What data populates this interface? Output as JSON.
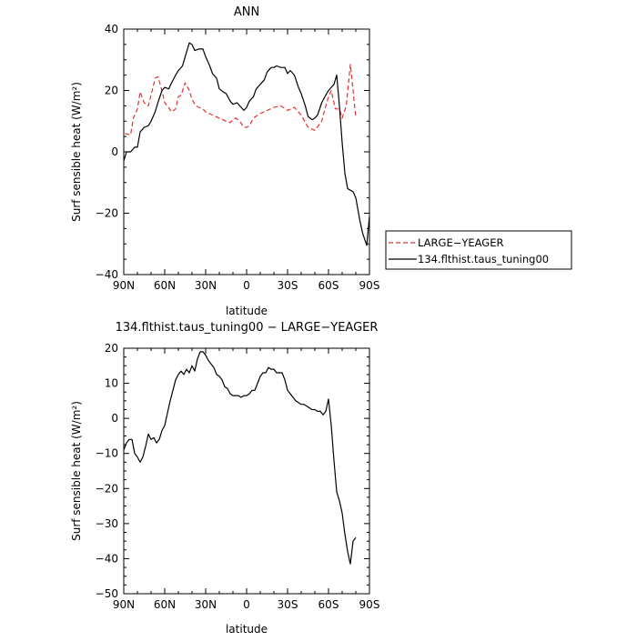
{
  "chart_data": [
    {
      "type": "line",
      "title": "ANN",
      "xlabel": "latitude",
      "ylabel": "Surf sensible heat (W/m²)",
      "xlim": [
        90,
        -90
      ],
      "ylim": [
        -40,
        40
      ],
      "x_ticks": [
        90,
        60,
        30,
        0,
        -30,
        -60,
        -90
      ],
      "x_tick_labels": [
        "90N",
        "60N",
        "30N",
        "0",
        "30S",
        "60S",
        "90S"
      ],
      "y_ticks": [
        -40,
        -20,
        0,
        20,
        40
      ],
      "y_tick_labels": [
        "−40",
        "−20",
        "0",
        "20",
        "40"
      ],
      "legend_position": "right",
      "series": [
        {
          "name": "LARGE−YEAGER",
          "color": "#e8312e",
          "dash": "dashed",
          "x": [
            89,
            85,
            83,
            80,
            78,
            75,
            72,
            70,
            67,
            65,
            62,
            60,
            58,
            55,
            52,
            50,
            48,
            45,
            42,
            40,
            37,
            35,
            32,
            30,
            25,
            20,
            15,
            12,
            10,
            8,
            5,
            2,
            0,
            -2,
            -5,
            -10,
            -15,
            -20,
            -25,
            -30,
            -35,
            -40,
            -45,
            -50,
            -55,
            -58,
            -60,
            -62,
            -65,
            -68,
            -70,
            -73,
            -76,
            -78,
            -80
          ],
          "y": [
            6,
            5.5,
            11,
            14,
            19.5,
            16,
            15,
            18.5,
            24,
            24.5,
            20,
            16,
            15,
            13,
            14,
            18,
            18.5,
            22.5,
            20,
            17,
            15,
            14.5,
            14,
            13,
            12,
            11,
            10,
            9.5,
            10.5,
            11,
            10,
            8,
            8,
            8.5,
            11,
            12.5,
            13.5,
            14.5,
            15,
            13.5,
            14.5,
            12,
            8,
            7,
            10,
            15,
            18,
            20,
            14,
            14,
            11,
            15,
            28.5,
            20,
            11
          ]
        },
        {
          "name": "134.flthist.taus_tuning00",
          "color": "#000000",
          "dash": "solid",
          "x": [
            90,
            88,
            85,
            82,
            80,
            78,
            75,
            72,
            70,
            67,
            65,
            62,
            60,
            57,
            55,
            52,
            50,
            47,
            45,
            42,
            40,
            38,
            35,
            32,
            30,
            27,
            25,
            22,
            20,
            17,
            15,
            12,
            10,
            7,
            5,
            2,
            0,
            -2,
            -5,
            -7,
            -10,
            -13,
            -15,
            -18,
            -20,
            -22,
            -25,
            -28,
            -30,
            -32,
            -35,
            -38,
            -40,
            -43,
            -45,
            -48,
            -50,
            -52,
            -55,
            -58,
            -60,
            -62,
            -64,
            -66,
            -68,
            -70,
            -72,
            -74,
            -76,
            -78,
            -80,
            -83,
            -85,
            -88,
            -90
          ],
          "y": [
            -3,
            0,
            0,
            1.5,
            1.5,
            6.5,
            8,
            8.5,
            10,
            13,
            16,
            20,
            21,
            20.5,
            22.5,
            25,
            26.5,
            28,
            31,
            35.5,
            35,
            33,
            33.5,
            33.5,
            31,
            28,
            25.5,
            24,
            20.5,
            19.5,
            19,
            16.5,
            15.5,
            16,
            15,
            13.5,
            14.5,
            16.5,
            18,
            20.5,
            22,
            23.5,
            26,
            27.5,
            27.5,
            28,
            27.5,
            27.5,
            25.5,
            26.5,
            25,
            21,
            19,
            15,
            11.5,
            10.5,
            11,
            12,
            16,
            18.5,
            20,
            21,
            22,
            25,
            15,
            3,
            -7,
            -12,
            -12.5,
            -13,
            -15,
            -22.5,
            -26.5,
            -30.5,
            -21
          ]
        }
      ]
    },
    {
      "type": "line",
      "title": "134.flthist.taus_tuning00 − LARGE−YEAGER",
      "xlabel": "latitude",
      "ylabel": "Surf sensible heat (W/m²)",
      "xlim": [
        90,
        -90
      ],
      "ylim": [
        -50,
        20
      ],
      "x_ticks": [
        90,
        60,
        30,
        0,
        -30,
        -60,
        -90
      ],
      "x_tick_labels": [
        "90N",
        "60N",
        "30N",
        "0",
        "30S",
        "60S",
        "90S"
      ],
      "y_ticks": [
        -50,
        -40,
        -30,
        -20,
        -10,
        0,
        10,
        20
      ],
      "y_tick_labels": [
        "−50",
        "−40",
        "−30",
        "−20",
        "−10",
        "0",
        "10",
        "20"
      ],
      "series": [
        {
          "color": "#000000",
          "dash": "solid",
          "x": [
            90,
            88,
            86,
            84,
            82,
            80,
            78,
            76,
            74,
            72,
            70,
            68,
            66,
            64,
            62,
            60,
            58,
            56,
            54,
            52,
            50,
            48,
            46,
            44,
            42,
            40,
            38,
            36,
            34,
            32,
            30,
            28,
            26,
            24,
            22,
            20,
            18,
            16,
            14,
            12,
            10,
            8,
            6,
            4,
            2,
            0,
            -2,
            -4,
            -6,
            -8,
            -10,
            -12,
            -14,
            -16,
            -18,
            -20,
            -22,
            -24,
            -26,
            -28,
            -30,
            -32,
            -34,
            -36,
            -38,
            -40,
            -42,
            -44,
            -46,
            -48,
            -50,
            -52,
            -54,
            -56,
            -58,
            -60,
            -62,
            -64,
            -66,
            -68,
            -70,
            -72,
            -74,
            -76,
            -78,
            -80
          ],
          "y": [
            -9,
            -7,
            -6,
            -6,
            -10,
            -11,
            -12.5,
            -11,
            -8,
            -4.5,
            -6,
            -5.5,
            -7,
            -6,
            -3.5,
            -2,
            1.5,
            5,
            8,
            11,
            12.5,
            13.5,
            12.5,
            14,
            13,
            15,
            13.5,
            17,
            19,
            19,
            18,
            16.5,
            15.5,
            14.5,
            12.5,
            12,
            11,
            9,
            8.5,
            7,
            6.5,
            6.5,
            6.5,
            6,
            6.5,
            6.5,
            7,
            8,
            8,
            10,
            12,
            13,
            13,
            14.5,
            14,
            14,
            13,
            13,
            13,
            11,
            8,
            7,
            6,
            5,
            4.5,
            4,
            4,
            3.5,
            3,
            2.5,
            2.5,
            2,
            2,
            1,
            2,
            5.5,
            -2,
            -12,
            -21,
            -23.5,
            -27,
            -33,
            -38,
            -41.5,
            -35,
            -34
          ]
        }
      ]
    }
  ]
}
